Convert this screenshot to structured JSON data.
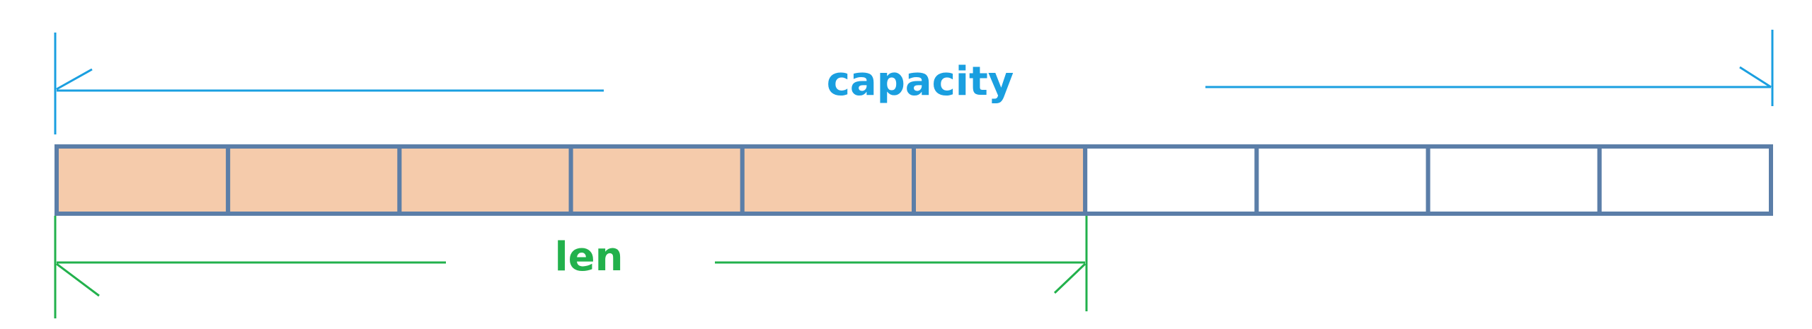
{
  "diagram": {
    "capacity_label": "capacity",
    "len_label": "len",
    "capacity_cells": 10,
    "len_cells": 6,
    "colors": {
      "capacity": "#1a9fe0",
      "len": "#22b14c",
      "cell_border": "#5b7ea8",
      "cell_filled": "#f5cbab",
      "cell_empty": "#ffffff"
    }
  }
}
